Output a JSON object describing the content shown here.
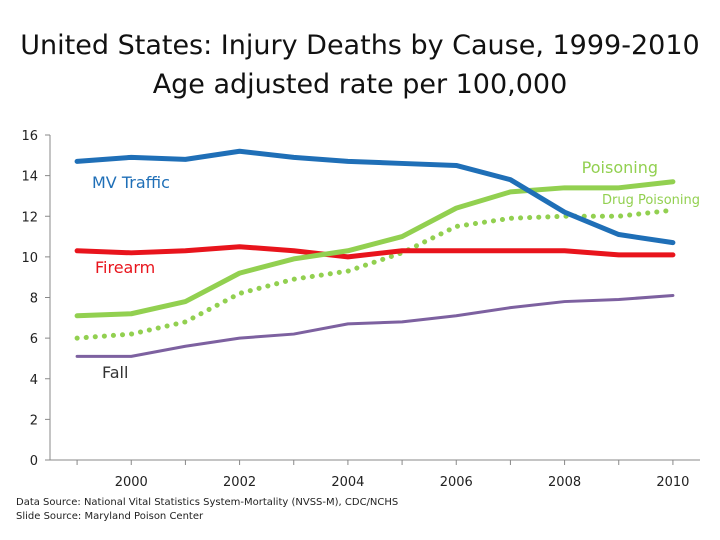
{
  "title_line1": "United States: Injury Deaths by Cause, 1999-2010",
  "title_line2": "Age adjusted rate per 100,000",
  "source_line1": "Data Source: National Vital Statistics System-Mortality (NVSS-M), CDC/NCHS",
  "source_line2": "Slide Source: Maryland Poison Center",
  "chart_data": {
    "type": "line",
    "x": [
      1999,
      2000,
      2001,
      2002,
      2003,
      2004,
      2005,
      2006,
      2007,
      2008,
      2009,
      2010
    ],
    "x_tick_labels": [
      "2000",
      "2002",
      "2004",
      "2006",
      "2008",
      "2010"
    ],
    "x_tick_values": [
      2000,
      2002,
      2004,
      2006,
      2008,
      2010
    ],
    "y_ticks": [
      0,
      2,
      4,
      6,
      8,
      10,
      12,
      14,
      16
    ],
    "ylim": [
      0,
      16
    ],
    "grid": false,
    "series": [
      {
        "name": "MV Traffic",
        "color": "#1f6fb7",
        "style": "solid",
        "values": [
          14.7,
          14.9,
          14.8,
          15.2,
          14.9,
          14.7,
          14.6,
          14.5,
          13.8,
          12.2,
          11.1,
          10.7
        ]
      },
      {
        "name": "Poisoning",
        "color": "#92d050",
        "style": "solid",
        "values": [
          7.1,
          7.2,
          7.8,
          9.2,
          9.9,
          10.3,
          11.0,
          12.4,
          13.2,
          13.4,
          13.4,
          13.7
        ]
      },
      {
        "name": "Drug Poisoning",
        "color": "#92d050",
        "style": "dotted",
        "values": [
          6.0,
          6.2,
          6.8,
          8.2,
          8.9,
          9.3,
          10.2,
          11.5,
          11.9,
          12.0,
          12.0,
          12.3
        ]
      },
      {
        "name": "Firearm",
        "color": "#e8141c",
        "style": "solid",
        "values": [
          10.3,
          10.2,
          10.3,
          10.5,
          10.3,
          10.0,
          10.3,
          10.3,
          10.3,
          10.3,
          10.1,
          10.1
        ]
      },
      {
        "name": "Fall",
        "color": "#7d61a0",
        "style": "solid",
        "values": [
          5.1,
          5.1,
          5.6,
          6.0,
          6.2,
          6.7,
          6.8,
          7.1,
          7.5,
          7.8,
          7.9,
          8.1
        ]
      }
    ]
  }
}
